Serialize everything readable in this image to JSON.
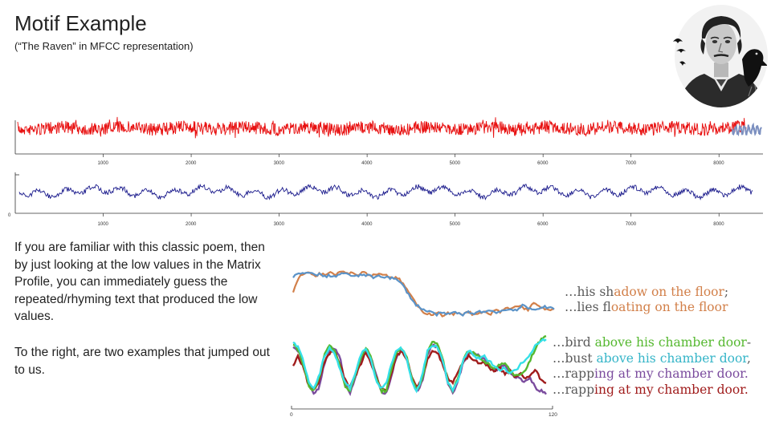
{
  "slide": {
    "title": "Motif Example",
    "subtitle": "(“The Raven” in MFCC representation)",
    "paragraph1": "If you are familiar with this classic poem, then by just looking at the low values in the Matrix Profile, you can immediately guess the repeated/rhyming  text that produced the low values.",
    "paragraph2": "To the right, are two examples that jumped out to us.",
    "portrait_icon": "edgar-allan-poe-with-raven-portrait"
  },
  "lyrics_top": [
    {
      "prefix": "…his sh",
      "highlight": "adow on the floor",
      "suffix": ";",
      "color": "#d2804a"
    },
    {
      "prefix": "…lies fl",
      "highlight": "oating on the floor",
      "suffix": "",
      "color": "#3c82c8"
    }
  ],
  "lyrics_bottom": [
    {
      "prefix": "…bird ",
      "highlight": "above his chamber door",
      "suffix": "-",
      "color": "#55b82f"
    },
    {
      "prefix": "…bust ",
      "highlight": "above his chamber door",
      "suffix": ",",
      "color": "#35b5c8"
    },
    {
      "prefix": "…rapp",
      "highlight": "ing at my chamber door.",
      "suffix": "",
      "color": "#7b4c9e"
    },
    {
      "prefix": "…rapp",
      "highlight": "ing at my chamber door.",
      "suffix": "",
      "color": "#a01c1c"
    }
  ],
  "chart_data": [
    {
      "type": "line",
      "description": "MFCC time series of the poem",
      "x_range": [
        0,
        8500
      ],
      "xticks": [
        1000,
        2000,
        3000,
        4000,
        5000,
        6000,
        7000,
        8000
      ],
      "colors": {
        "series": "#e81010",
        "motif": "#7c90c0"
      }
    },
    {
      "type": "line",
      "description": "Matrix profile",
      "x_range": [
        0,
        8500
      ],
      "xticks": [
        1000,
        2000,
        3000,
        4000,
        5000,
        6000,
        7000,
        8000
      ],
      "y_label_zero": "0",
      "colors": {
        "series": "#1a1a8c"
      }
    },
    {
      "type": "line",
      "description": "Motif pair 1",
      "series": [
        {
          "color": "#d2804a",
          "values": [
            -0.3,
            0.4,
            0.55,
            0.7,
            0.45,
            0.6,
            0.5,
            0.7,
            0.55,
            0.75,
            0.6,
            0.65,
            0.5,
            0.7,
            0.55,
            0.5,
            0.6,
            0.55,
            0.45,
            0.4,
            0.3,
            0.0,
            -0.4,
            -0.8,
            -1.1,
            -1.25,
            -1.3,
            -1.2,
            -1.35,
            -1.25,
            -1.3,
            -1.2,
            -1.3,
            -1.15,
            -1.35,
            -1.25,
            -1.2,
            -1.3,
            -1.1,
            -1.2,
            -1.0,
            -1.05,
            -0.9,
            -0.95,
            -1.1,
            -0.8,
            -0.9,
            -1.0,
            -1.15,
            -1.05
          ]
        },
        {
          "color": "#5b93c8",
          "values": [
            0.4,
            0.6,
            0.55,
            0.7,
            0.5,
            0.55,
            0.45,
            0.5,
            0.45,
            0.6,
            0.55,
            0.5,
            0.45,
            0.55,
            0.5,
            0.4,
            0.5,
            0.45,
            0.4,
            0.35,
            0.2,
            -0.1,
            -0.5,
            -0.85,
            -1.0,
            -1.15,
            -1.2,
            -1.3,
            -1.25,
            -1.3,
            -1.2,
            -1.25,
            -1.3,
            -1.2,
            -1.25,
            -1.15,
            -1.2,
            -1.1,
            -1.2,
            -1.15,
            -1.1,
            -1.05,
            -1.1,
            -0.9,
            -1.0,
            -1.1,
            -1.0,
            -0.95,
            -1.0,
            -1.05
          ]
        }
      ]
    },
    {
      "type": "line",
      "description": "Motif group 2",
      "x_range": [
        0,
        120
      ],
      "xticks": [
        0,
        120
      ],
      "series": [
        {
          "color": "#7b4c9e",
          "values": [
            0.6,
            0.5,
            0.0,
            -0.6,
            -1.0,
            -0.8,
            0.0,
            0.5,
            0.6,
            0.3,
            -0.6,
            -1.0,
            -0.5,
            0.1,
            0.5,
            0.3,
            -0.3,
            -0.9,
            -1.0,
            -0.4,
            0.3,
            0.5,
            0.2,
            -0.5,
            -0.9,
            -0.6,
            0.3,
            0.7,
            0.6,
            0.1,
            -0.7,
            -1.0,
            -0.5,
            0.1,
            0.4,
            0.4,
            0.3,
            0.2,
            0.0,
            -0.2,
            -0.1,
            0.0,
            -0.3,
            -0.4,
            -0.5,
            -0.6,
            -0.5,
            -0.8,
            -0.9,
            -1.0
          ]
        },
        {
          "color": "#a01c1c",
          "values": [
            0.0,
            0.3,
            -0.1,
            -0.7,
            -0.9,
            -0.6,
            0.1,
            0.4,
            0.5,
            0.1,
            -0.5,
            -0.8,
            -0.4,
            0.0,
            0.4,
            0.1,
            -0.4,
            -0.8,
            -0.9,
            -0.3,
            0.3,
            0.5,
            0.2,
            -0.4,
            -0.8,
            -0.5,
            0.2,
            0.5,
            0.4,
            0.0,
            -0.5,
            -0.6,
            -0.2,
            0.1,
            0.3,
            0.2,
            0.0,
            0.1,
            -0.1,
            -0.2,
            -0.1,
            -0.3,
            -0.2,
            -0.4,
            -0.3,
            -0.5,
            -0.3,
            -0.2,
            -0.5,
            -0.6
          ]
        },
        {
          "color": "#55b82f",
          "values": [
            0.7,
            0.5,
            0.0,
            -0.7,
            -0.9,
            -0.5,
            0.3,
            0.7,
            0.5,
            0.0,
            -0.7,
            -0.9,
            -0.4,
            0.2,
            0.6,
            0.3,
            -0.4,
            -0.9,
            -0.9,
            -0.2,
            0.4,
            0.6,
            0.3,
            -0.5,
            -0.9,
            -0.5,
            0.4,
            0.8,
            0.7,
            0.2,
            -0.6,
            -0.9,
            -0.4,
            0.2,
            0.5,
            0.4,
            0.3,
            0.1,
            0.0,
            -0.1,
            0.0,
            0.1,
            -0.2,
            -0.4,
            -0.3,
            -0.2,
            0.2,
            0.6,
            0.9,
            1.0
          ]
        },
        {
          "color": "#35e0e8",
          "values": [
            0.8,
            0.6,
            0.1,
            -0.6,
            -0.8,
            -0.4,
            0.3,
            0.6,
            0.4,
            -0.1,
            -0.6,
            -0.8,
            -0.3,
            0.3,
            0.6,
            0.2,
            -0.5,
            -0.8,
            -0.7,
            0.0,
            0.5,
            0.6,
            0.2,
            -0.6,
            -0.9,
            -0.4,
            0.5,
            0.7,
            0.6,
            0.1,
            -0.6,
            -0.9,
            -0.5,
            0.2,
            0.5,
            0.3,
            0.2,
            0.3,
            0.1,
            0.0,
            -0.2,
            -0.1,
            -0.3,
            -0.2,
            0.0,
            0.2,
            0.4,
            0.7,
            0.85,
            0.9
          ]
        }
      ]
    }
  ]
}
